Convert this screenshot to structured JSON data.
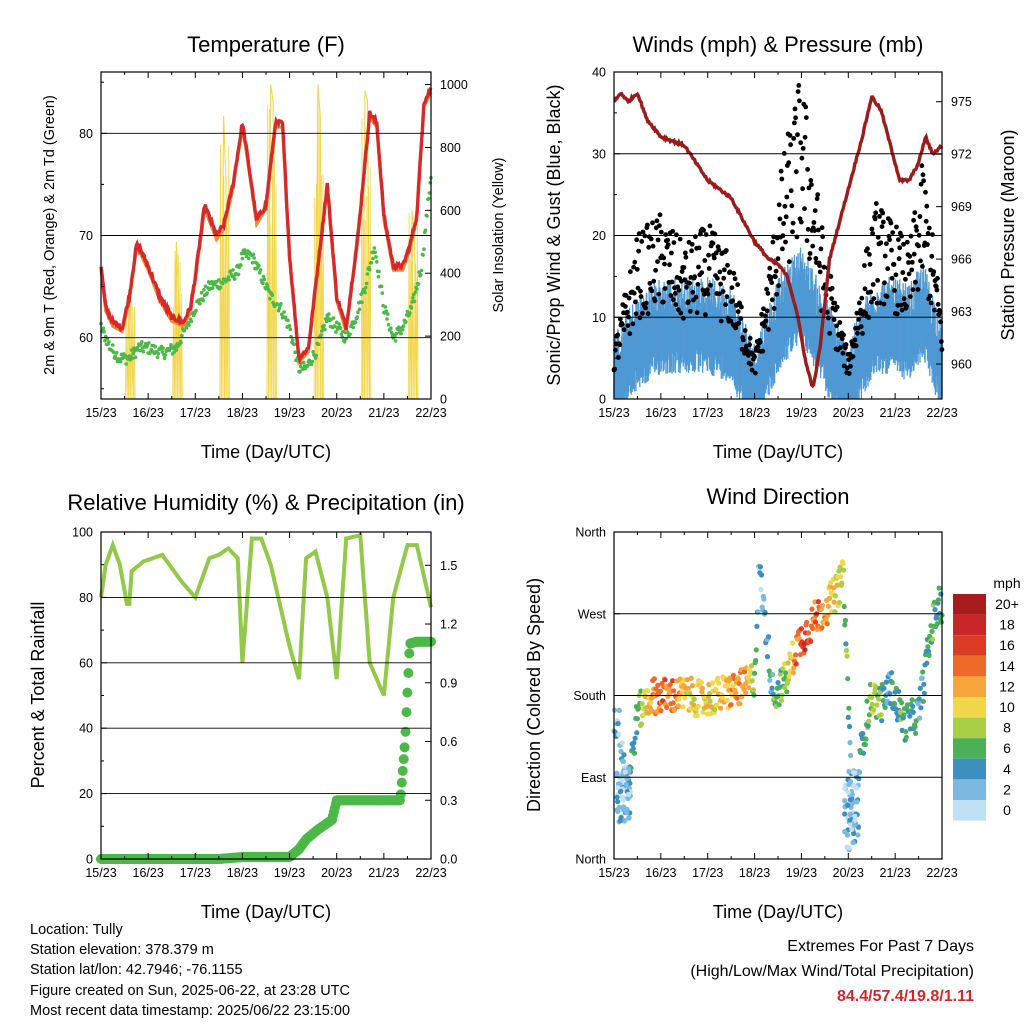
{
  "panels": {
    "temperature": {
      "title": "Temperature (F)",
      "ylabel_left": "2m & 9m T (Red, Orange) & 2m Td (Green)",
      "ylabel_right": "Solar Insolation (Yellow)",
      "xlabel": "Time (Day/UTC)"
    },
    "winds": {
      "title": "Winds (mph) & Pressure (mb)",
      "ylabel_left": "Sonic/Prop Wind & Gust (Blue, Black)",
      "ylabel_right": "Station Pressure (Maroon)",
      "xlabel": "Time (Day/UTC)"
    },
    "humidity": {
      "title": "Relative Humidity (%) & Precipitation (in)",
      "ylabel_left": "Percent & Total Rainfall",
      "xlabel": "Time (Day/UTC)"
    },
    "direction": {
      "title": "Wind Direction",
      "ylabel_left": "Direction (Colored By Speed)",
      "xlabel": "Time (Day/UTC)",
      "legend_title": "mph"
    }
  },
  "info": {
    "location": "Location: Tully",
    "elevation": "Station elevation: 378.379 m",
    "latlon": "Station lat/lon: 42.7946; -76.1155",
    "created": "Figure created on Sun, 2025-06-22, at 23:28 UTC",
    "recent": "Most recent data timestamp: 2025/06/22 23:15:00"
  },
  "extremes": {
    "line1": "Extremes For Past 7 Days",
    "line2": "(High/Low/Max Wind/Total Precipitation)",
    "values": "84.4/57.4/19.8/1.11"
  },
  "colors": {
    "temp_2m": "#d42a2a",
    "temp_9m": "#f08a3c",
    "dewpoint": "#4cb848",
    "solar": "#f2d64a",
    "wind": "#4f98d3",
    "gust": "#000000",
    "pressure": "#9b1c1c",
    "rh": "#93c84a",
    "precip": "#4cb848"
  },
  "chart_data": [
    {
      "type": "line",
      "title": "Temperature (F)",
      "xlabel": "Time (Day/UTC)",
      "ylabel": "2m & 9m T (Red, Orange) & 2m Td (Green)",
      "ylabel_right": "Solar Insolation (Yellow)",
      "xticks": [
        "15/23",
        "16/23",
        "17/23",
        "18/23",
        "19/23",
        "20/23",
        "21/23",
        "22/23"
      ],
      "ylim": [
        54,
        86
      ],
      "yticks": [
        60,
        70,
        80
      ],
      "y2lim": [
        0,
        1040
      ],
      "y2ticks": [
        0,
        200,
        400,
        600,
        800,
        1000
      ],
      "series": [
        {
          "name": "2m T",
          "x": [
            0,
            0.1,
            0.25,
            0.45,
            0.6,
            0.75,
            0.8,
            1.0,
            1.25,
            1.5,
            1.75,
            1.9,
            2.0,
            2.2,
            2.45,
            2.6,
            2.8,
            3.0,
            3.1,
            3.3,
            3.5,
            3.7,
            3.85,
            4.0,
            4.2,
            4.4,
            4.6,
            4.8,
            5.0,
            5.2,
            5.45,
            5.7,
            5.85,
            6.0,
            6.2,
            6.4,
            6.55,
            6.7,
            6.85,
            7.0
          ],
          "y": [
            67,
            63,
            61.5,
            61,
            64,
            69,
            69,
            67,
            64,
            62,
            61.5,
            63,
            66,
            73,
            70,
            71,
            75,
            81,
            78,
            71.5,
            73,
            81,
            81,
            68,
            58,
            59,
            67,
            75,
            64,
            61,
            70,
            82,
            81,
            72,
            67,
            67,
            69,
            72,
            83,
            84.4
          ]
        },
        {
          "name": "2m Td",
          "x": [
            0,
            0.2,
            0.4,
            0.6,
            0.8,
            1.0,
            1.3,
            1.6,
            2.0,
            2.3,
            2.6,
            2.9,
            3.0,
            3.2,
            3.4,
            3.6,
            3.8,
            4.0,
            4.2,
            4.35,
            4.6,
            4.8,
            5.0,
            5.2,
            5.4,
            5.6,
            5.8,
            6.0,
            6.2,
            6.4,
            6.6,
            6.8,
            7.0
          ],
          "y": [
            61,
            59,
            58,
            58,
            59,
            59,
            58.5,
            59,
            63,
            65,
            65.5,
            66.5,
            68,
            68,
            66,
            64,
            63,
            61,
            57,
            57,
            59,
            62,
            61,
            60,
            62,
            65,
            69,
            63,
            60,
            61,
            63,
            67,
            76
          ]
        },
        {
          "name": "Solar",
          "x": [
            0.55,
            0.6,
            0.65,
            0.7,
            1.55,
            1.6,
            1.65,
            1.7,
            2.55,
            2.6,
            2.65,
            2.7,
            3.55,
            3.6,
            3.65,
            3.7,
            4.55,
            4.6,
            4.65,
            4.7,
            5.55,
            5.6,
            5.65,
            5.7,
            6.55,
            6.6,
            6.65,
            6.7
          ],
          "y": [
            0,
            350,
            200,
            0,
            0,
            500,
            300,
            0,
            0,
            900,
            700,
            0,
            0,
            1000,
            950,
            0,
            0,
            1000,
            900,
            0,
            0,
            980,
            950,
            0,
            0,
            600,
            500,
            0
          ]
        }
      ]
    },
    {
      "type": "line",
      "title": "Winds (mph) & Pressure (mb)",
      "xlabel": "Time (Day/UTC)",
      "ylabel": "Sonic/Prop Wind & Gust (Blue, Black)",
      "ylabel_right": "Station Pressure (Maroon)",
      "xticks": [
        "15/23",
        "16/23",
        "17/23",
        "18/23",
        "19/23",
        "20/23",
        "21/23",
        "22/23"
      ],
      "ylim": [
        0,
        40
      ],
      "yticks": [
        0,
        10,
        20,
        30,
        40
      ],
      "y2lim": [
        958,
        976.7
      ],
      "y2ticks": [
        960,
        963,
        966,
        969,
        972,
        975
      ],
      "series": [
        {
          "name": "Station Pressure",
          "x": [
            0,
            0.15,
            0.3,
            0.5,
            0.7,
            1.0,
            1.5,
            2.0,
            2.5,
            3.0,
            3.3,
            3.5,
            3.7,
            3.9,
            4.1,
            4.25,
            4.4,
            4.6,
            5.0,
            5.3,
            5.5,
            5.7,
            5.9,
            6.1,
            6.3,
            6.5,
            6.65,
            6.8,
            7.0
          ],
          "y": [
            975,
            975.5,
            975,
            975.5,
            974,
            973,
            972.5,
            970.5,
            969.5,
            967,
            966,
            965.7,
            965,
            963,
            960,
            958.6,
            961,
            966,
            970,
            973,
            975.3,
            974.5,
            972.5,
            970.5,
            970.5,
            971.5,
            973,
            972,
            972.5
          ]
        },
        {
          "name": "Wind",
          "x": [
            0,
            0.5,
            1,
            1.5,
            2,
            2.5,
            3,
            3.3,
            3.6,
            4,
            4.5,
            5,
            5.3,
            5.6,
            6,
            6.3,
            6.6,
            7
          ],
          "y": [
            3,
            8,
            10,
            10,
            10,
            9,
            2,
            7,
            11,
            14,
            8,
            2,
            7,
            10,
            10,
            9,
            12,
            5
          ]
        },
        {
          "name": "Gust",
          "x": [
            0,
            0.5,
            1,
            1.5,
            2,
            2.5,
            3,
            3.3,
            3.6,
            4,
            4.5,
            5,
            5.3,
            5.6,
            6,
            6.3,
            6.6,
            7
          ],
          "y": [
            5,
            15,
            17,
            14,
            16,
            13,
            4,
            12,
            22,
            30,
            14,
            4,
            12,
            18,
            16,
            14,
            22,
            8
          ]
        }
      ]
    },
    {
      "type": "line",
      "title": "Relative Humidity (%) & Precipitation (in)",
      "xlabel": "Time (Day/UTC)",
      "ylabel": "Percent & Total Rainfall",
      "xticks": [
        "15/23",
        "16/23",
        "17/23",
        "18/23",
        "19/23",
        "20/23",
        "21/23",
        "22/23"
      ],
      "ylim": [
        0,
        100
      ],
      "yticks": [
        0,
        20,
        40,
        60,
        80,
        100
      ],
      "y2lim": [
        0,
        1.67
      ],
      "y2ticks": [
        0.0,
        0.3,
        0.6,
        0.9,
        1.2,
        1.5
      ],
      "series": [
        {
          "name": "RH",
          "x": [
            0,
            0.1,
            0.25,
            0.4,
            0.55,
            0.6,
            0.65,
            0.9,
            1.3,
            1.7,
            2.0,
            2.3,
            2.5,
            2.7,
            2.9,
            3.0,
            3.2,
            3.4,
            3.6,
            4.0,
            4.2,
            4.35,
            4.55,
            4.8,
            5.0,
            5.2,
            5.5,
            5.7,
            6.0,
            6.2,
            6.5,
            6.7,
            7.0
          ],
          "y": [
            80,
            90,
            96,
            90,
            78,
            78,
            88,
            91,
            93,
            85,
            80,
            92,
            93,
            95,
            92,
            60,
            98,
            98,
            90,
            65,
            55,
            92,
            94,
            80,
            55,
            98,
            99,
            60,
            50,
            80,
            96,
            96,
            77
          ]
        },
        {
          "name": "Precipitation",
          "x": [
            0,
            2.5,
            3.0,
            4.0,
            4.2,
            4.35,
            4.6,
            4.9,
            5.0,
            6.0,
            6.35,
            6.45,
            6.55,
            6.7,
            7.0
          ],
          "y": [
            0,
            0,
            0.01,
            0.01,
            0.05,
            0.1,
            0.15,
            0.2,
            0.3,
            0.3,
            0.3,
            0.6,
            1.1,
            1.11,
            1.11
          ]
        }
      ]
    },
    {
      "type": "scatter",
      "title": "Wind Direction",
      "xlabel": "Time (Day/UTC)",
      "ylabel": "Direction (Colored By Speed)",
      "xticks": [
        "15/23",
        "16/23",
        "17/23",
        "18/23",
        "19/23",
        "20/23",
        "21/23",
        "22/23"
      ],
      "yticks": [
        "North",
        "East",
        "South",
        "West",
        "North"
      ],
      "ylim": [
        0,
        360
      ],
      "legend": {
        "title": "mph",
        "labels": [
          "20+",
          "18",
          "16",
          "14",
          "12",
          "10",
          "8",
          "6",
          "4",
          "2",
          "0"
        ],
        "colors": [
          "#a51d1d",
          "#c9262a",
          "#dd3a26",
          "#ee6a2a",
          "#f6a43c",
          "#f0d84a",
          "#a8cf45",
          "#4caf5a",
          "#3d8fbf",
          "#7db8e0",
          "#bfe0f5"
        ]
      },
      "series": [
        {
          "name": "Direction",
          "x": [
            0.1,
            0.3,
            0.5,
            0.8,
            1.0,
            1.3,
            1.6,
            1.9,
            2.2,
            2.5,
            2.8,
            3.0,
            3.1,
            3.4,
            3.7,
            3.9,
            4.1,
            4.3,
            4.5,
            4.7,
            4.9,
            5.1,
            5.3,
            5.5,
            5.7,
            5.9,
            6.2,
            6.5,
            6.8,
            6.95
          ],
          "y": [
            150,
            80,
            160,
            180,
            180,
            180,
            180,
            175,
            180,
            185,
            190,
            200,
            320,
            180,
            200,
            235,
            250,
            265,
            275,
            290,
            310,
            40,
            130,
            180,
            170,
            190,
            150,
            160,
            260,
            280
          ],
          "speed": [
            2,
            3,
            6,
            12,
            14,
            13,
            10,
            10,
            10,
            12,
            13,
            6,
            1,
            5,
            8,
            14,
            16,
            14,
            12,
            10,
            8,
            1,
            4,
            8,
            6,
            4,
            6,
            4,
            6,
            5
          ]
        }
      ]
    }
  ]
}
